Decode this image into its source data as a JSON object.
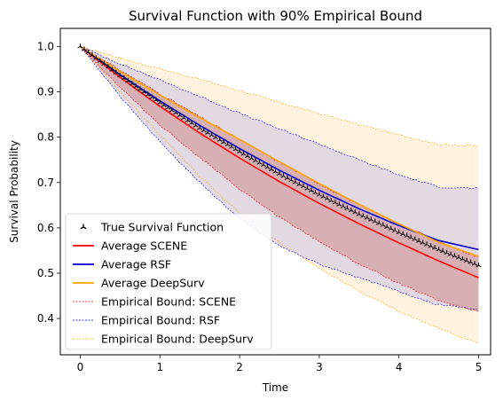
{
  "chart_data": {
    "type": "line",
    "title": "Survival Function with 90% Empirical Bound",
    "xlabel": "Time",
    "ylabel": "Survival Probability",
    "xlim": [
      -0.25,
      5.15
    ],
    "ylim": [
      0.32,
      1.04
    ],
    "xticks": [
      0,
      1,
      2,
      3,
      4,
      5
    ],
    "yticks": [
      0.4,
      0.5,
      0.6,
      0.7,
      0.8,
      0.9,
      1.0
    ],
    "grid": false,
    "legend_position": "lower-left",
    "x": [
      0,
      0.5,
      1,
      1.5,
      2,
      2.5,
      3,
      3.5,
      4,
      4.5,
      5
    ],
    "series": [
      {
        "name": "True Survival Function",
        "style": "markers",
        "marker": "tri-up",
        "color": "#000000",
        "values": [
          1.0,
          0.936,
          0.876,
          0.82,
          0.768,
          0.719,
          0.673,
          0.63,
          0.59,
          0.552,
          0.517
        ]
      },
      {
        "name": "Average SCENE",
        "style": "solid",
        "color": "#ff0000",
        "values": [
          1.0,
          0.932,
          0.868,
          0.809,
          0.754,
          0.702,
          0.654,
          0.609,
          0.567,
          0.527,
          0.49
        ]
      },
      {
        "name": "Average RSF",
        "style": "solid",
        "color": "#0000cd",
        "values": [
          1.0,
          0.938,
          0.88,
          0.826,
          0.775,
          0.727,
          0.683,
          0.642,
          0.605,
          0.572,
          0.552
        ]
      },
      {
        "name": "Average DeepSurv",
        "style": "solid",
        "color": "#ffa500",
        "values": [
          1.0,
          0.945,
          0.893,
          0.843,
          0.795,
          0.746,
          0.698,
          0.652,
          0.609,
          0.568,
          0.537
        ]
      },
      {
        "name": "Empirical Bound: SCENE",
        "style": "dashed-band",
        "color": "#ff0000",
        "fill": "#d3a0a6",
        "upper": [
          1.0,
          0.948,
          0.896,
          0.845,
          0.795,
          0.745,
          0.697,
          0.651,
          0.609,
          0.57,
          0.535
        ],
        "lower": [
          1.0,
          0.91,
          0.827,
          0.755,
          0.685,
          0.623,
          0.57,
          0.52,
          0.478,
          0.44,
          0.415
        ]
      },
      {
        "name": "Empirical Bound: RSF",
        "style": "dashed-band",
        "color": "#0000ff",
        "fill": "#d8d0e4",
        "upper": [
          1.0,
          0.962,
          0.926,
          0.89,
          0.853,
          0.818,
          0.785,
          0.75,
          0.717,
          0.69,
          0.687
        ],
        "lower": [
          1.0,
          0.89,
          0.79,
          0.7,
          0.62,
          0.56,
          0.52,
          0.49,
          0.46,
          0.43,
          0.42
        ]
      },
      {
        "name": "Empirical Bound: DeepSurv",
        "style": "dashed-band",
        "color": "#ffa500",
        "fill": "#fff3e0",
        "upper": [
          1.0,
          0.975,
          0.951,
          0.928,
          0.903,
          0.877,
          0.852,
          0.828,
          0.805,
          0.785,
          0.78
        ],
        "lower": [
          1.0,
          0.9,
          0.805,
          0.714,
          0.632,
          0.567,
          0.51,
          0.46,
          0.416,
          0.378,
          0.345
        ]
      }
    ]
  }
}
